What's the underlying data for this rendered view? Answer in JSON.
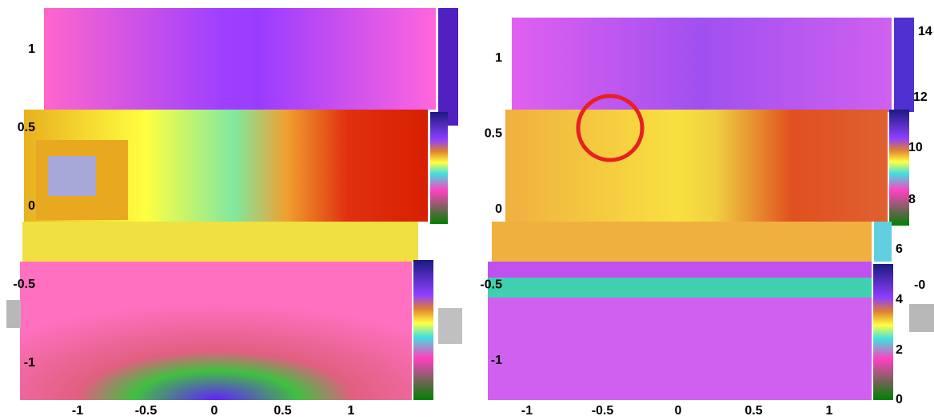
{
  "chart_data": [
    {
      "type": "heatmap",
      "xticks": [
        -1,
        -0.5,
        0,
        0.5,
        1
      ],
      "yticks": [
        1,
        0.5,
        0,
        -0.5,
        -1
      ]
    },
    {
      "type": "heatmap",
      "xticks": [
        -1,
        -0.5,
        0,
        0.5,
        1
      ],
      "yticks": [
        1,
        0.5,
        0,
        -0.5,
        -1
      ],
      "colorbar_ticks": [
        14,
        12,
        10,
        8,
        6,
        4,
        2,
        0
      ],
      "stray_label": "-0"
    }
  ]
}
